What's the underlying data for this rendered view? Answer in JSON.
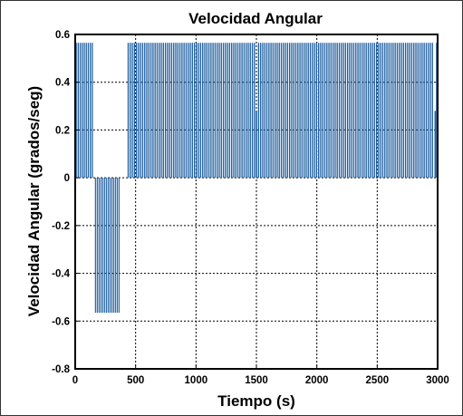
{
  "chart_data": {
    "type": "bar",
    "title": "Velocidad Angular",
    "xlabel": "Tiempo (s)",
    "ylabel": "Velocidad Angular (grados/seg)",
    "xlim": [
      0,
      3000
    ],
    "ylim": [
      -0.8,
      0.6
    ],
    "x_ticks": [
      "0",
      "500",
      "1000",
      "1500",
      "2000",
      "2500",
      "3000"
    ],
    "y_ticks": [
      "0.6",
      "0.4",
      "0.2",
      "0",
      "-0.2",
      "-0.4",
      "-0.6",
      "-0.8"
    ],
    "grid": true,
    "grid_style": "dotted",
    "series_color": "#1f5fa0",
    "segments": [
      {
        "x_start": 0,
        "x_end": 150,
        "value": 0.565,
        "bars": 9
      },
      {
        "x_start": 160,
        "x_end": 370,
        "value": -0.565,
        "bars": 14
      },
      {
        "x_start": 430,
        "x_end": 3000,
        "value": 0.565,
        "bars": 150
      }
    ],
    "special_bars": [
      {
        "x": 1500,
        "value": 0.28
      },
      {
        "x": 2980,
        "value": 0.28
      }
    ]
  }
}
